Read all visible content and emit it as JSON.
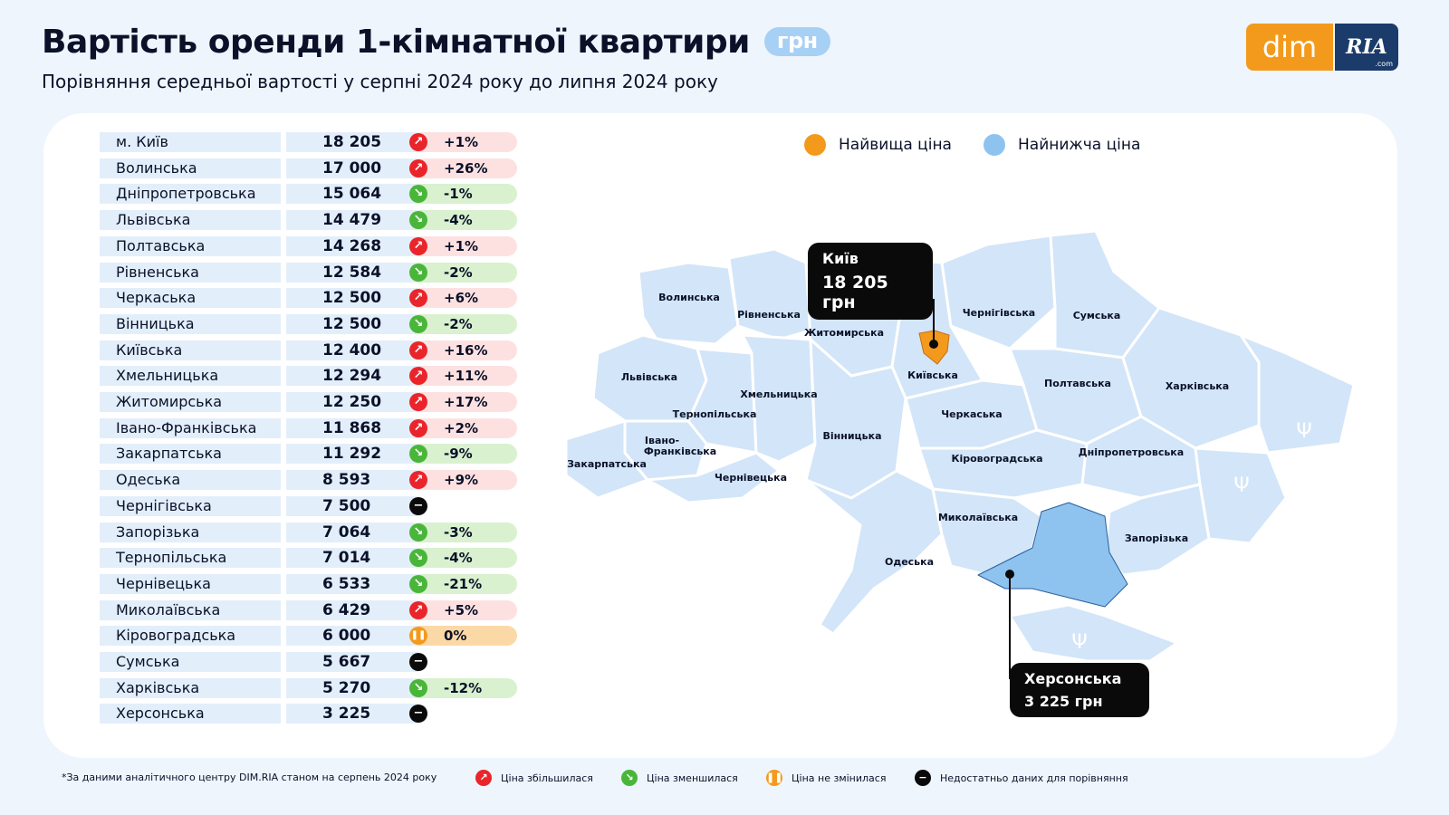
{
  "header": {
    "title": "Вартість оренди 1-кімнатної квартири",
    "unit_badge": "грн",
    "subtitle": "Порівняння середньої вартості у серпні 2024 року до липня 2024 року"
  },
  "logo": {
    "dim": "dim",
    "ria": "RIA",
    "com": ".com"
  },
  "legend_top": {
    "highest": "Найвища ціна",
    "lowest": "Найнижча ціна",
    "highest_color": "#f39a1c",
    "lowest_color": "#8ec3f0"
  },
  "table": [
    {
      "region": "м. Київ",
      "price": "18 205",
      "trend": "up",
      "change": "+1%"
    },
    {
      "region": "Волинська",
      "price": "17 000",
      "trend": "up",
      "change": "+26%"
    },
    {
      "region": "Дніпропетровська",
      "price": "15 064",
      "trend": "down",
      "change": "-1%"
    },
    {
      "region": "Львівська",
      "price": "14 479",
      "trend": "down",
      "change": "-4%"
    },
    {
      "region": "Полтавська",
      "price": "14 268",
      "trend": "up",
      "change": "+1%"
    },
    {
      "region": "Рівненська",
      "price": "12 584",
      "trend": "down",
      "change": "-2%"
    },
    {
      "region": "Черкаська",
      "price": "12 500",
      "trend": "up",
      "change": "+6%"
    },
    {
      "region": "Вінницька",
      "price": "12 500",
      "trend": "down",
      "change": "-2%"
    },
    {
      "region": "Київська",
      "price": "12 400",
      "trend": "up",
      "change": "+16%"
    },
    {
      "region": "Хмельницька",
      "price": "12 294",
      "trend": "up",
      "change": "+11%"
    },
    {
      "region": "Житомирська",
      "price": "12 250",
      "trend": "up",
      "change": "+17%"
    },
    {
      "region": "Івано-Франківська",
      "price": "11 868",
      "trend": "up",
      "change": "+2%"
    },
    {
      "region": "Закарпатська",
      "price": "11 292",
      "trend": "down",
      "change": "-9%"
    },
    {
      "region": "Одеська",
      "price": "8 593",
      "trend": "up",
      "change": "+9%"
    },
    {
      "region": "Чернігівська",
      "price": "7 500",
      "trend": "none",
      "change": ""
    },
    {
      "region": "Запорізька",
      "price": "7 064",
      "trend": "down",
      "change": "-3%"
    },
    {
      "region": "Тернопільська",
      "price": "7 014",
      "trend": "down",
      "change": "-4%"
    },
    {
      "region": "Чернівецька",
      "price": "6 533",
      "trend": "down",
      "change": "-21%"
    },
    {
      "region": "Миколаївська",
      "price": "6 429",
      "trend": "up",
      "change": "+5%"
    },
    {
      "region": "Кіровоградська",
      "price": "6 000",
      "trend": "same",
      "change": "0%"
    },
    {
      "region": "Сумська",
      "price": "5 667",
      "trend": "none",
      "change": ""
    },
    {
      "region": "Харківська",
      "price": "5 270",
      "trend": "down",
      "change": "-12%"
    },
    {
      "region": "Херсонська",
      "price": "3 225",
      "trend": "none",
      "change": ""
    }
  ],
  "map_labels": {
    "volynska": "Волинська",
    "rivnenska": "Рівненська",
    "zhytomyrska": "Житомирська",
    "chernihivska": "Чернігівська",
    "sumska": "Сумська",
    "lvivska": "Львівська",
    "kyivska": "Київська",
    "poltavska": "Полтавська",
    "kharkivska": "Харківська",
    "khmelnytska": "Хмельницька",
    "ternopilska": "Тернопільська",
    "cherkaska": "Черкаська",
    "ivano1": "Івано-",
    "ivano2": "Франківська",
    "vinnytska": "Вінницька",
    "zakarpatska": "Закарпатська",
    "chernivetska": "Чернівецька",
    "kirovohradska": "Кіровоградська",
    "dnipropetrovska": "Дніпропетровська",
    "mykolaivska": "Миколаївська",
    "zaporizka": "Запорізька",
    "odeska": "Одеська"
  },
  "callouts": {
    "kyiv": {
      "name": "Київ",
      "price": "18 205 грн"
    },
    "kherson": {
      "name": "Херсонська",
      "price": "3 225 грн"
    }
  },
  "footnote": "*За даними аналітичного центру DIM.RIA станом на серпень 2024 року",
  "legend_bottom": {
    "up": "Ціна збільшилася",
    "down": "Ціна зменшилася",
    "same": "Ціна не змінилася",
    "none": "Недостатньо даних для порівняння"
  },
  "icons": {
    "up": "arrow-up-right-icon",
    "down": "arrow-down-right-icon",
    "same": "pause-icon",
    "none": "minus-icon"
  },
  "colors": {
    "up": "#e9252b",
    "down": "#49b63a",
    "same": "#f39a1c",
    "none": "#0a0a0a",
    "region_fill": "#d3e5f8",
    "highlight_high": "#f39a1c",
    "highlight_low": "#8ec3f0"
  }
}
